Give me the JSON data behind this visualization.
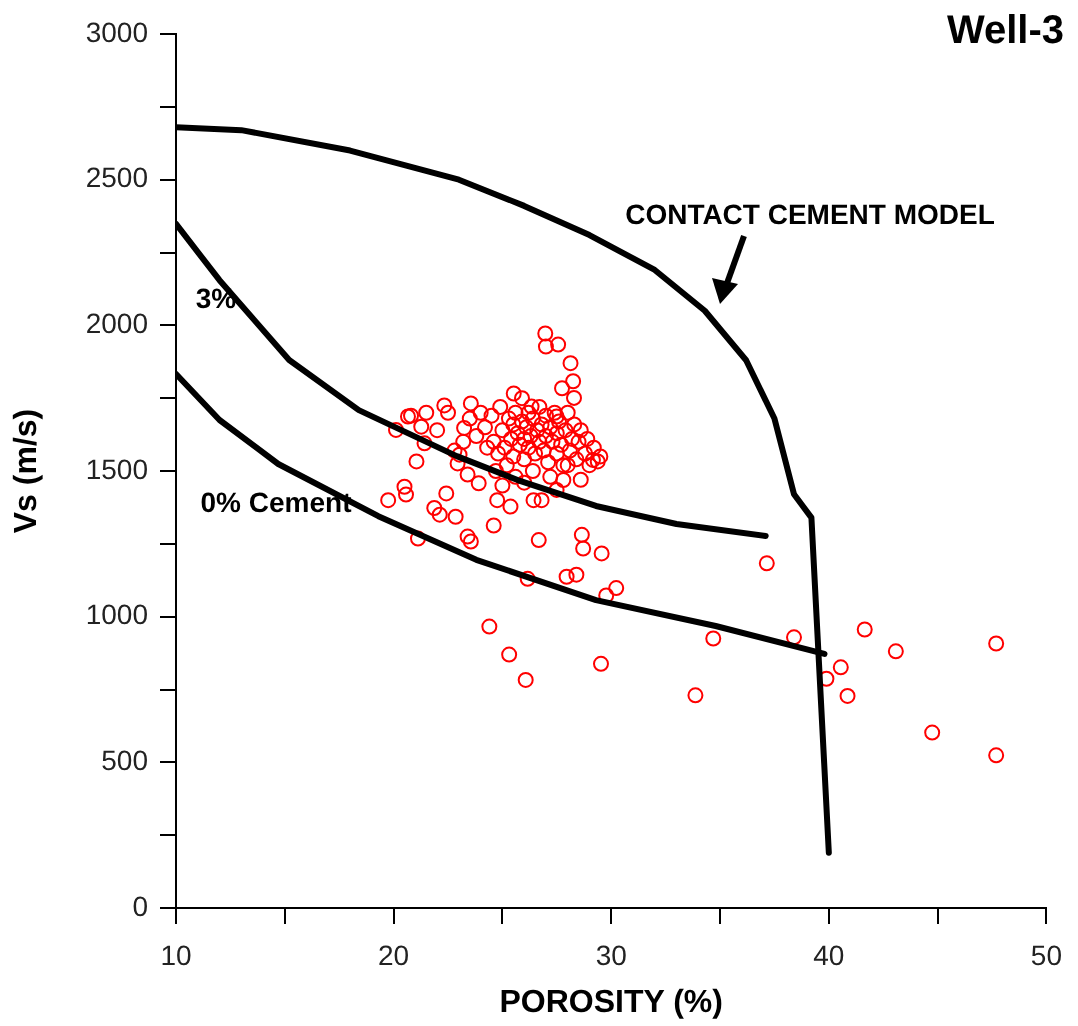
{
  "chart_data": {
    "type": "scatter",
    "title": "Well-3",
    "xlabel": "POROSITY (%)",
    "ylabel": "Vs (m/s)",
    "xlim": [
      10,
      50
    ],
    "ylim": [
      0,
      3000
    ],
    "xticks": [
      10,
      {
        "value": 15,
        "label": null
      },
      20,
      {
        "value": 25,
        "label": null
      },
      30,
      {
        "value": 35,
        "label": null
      },
      40,
      {
        "value": 45,
        "label": null
      },
      50
    ],
    "yticks": [
      0,
      {
        "value": 250,
        "label": null
      },
      500,
      {
        "value": 750,
        "label": null
      },
      1000,
      {
        "value": 1250,
        "label": null
      },
      1500,
      {
        "value": 1750,
        "label": null
      },
      2000,
      {
        "value": 2250,
        "label": null
      },
      2500,
      {
        "value": 2750,
        "label": null
      },
      3000
    ],
    "grid": false,
    "legend": false,
    "annotations": [
      "CONTACT CEMENT MODEL",
      "3%",
      "0% Cement"
    ],
    "series": [
      {
        "type": "line",
        "color": "#000000",
        "marker": "none",
        "x": [
          10,
          13,
          18,
          23,
          26,
          29,
          32,
          34.3,
          36.2,
          37.5,
          38.4,
          39.2,
          40
        ],
        "values": [
          2680,
          2670,
          2600,
          2500,
          2410,
          2310,
          2190,
          2050,
          1880,
          1680,
          1420,
          1340,
          190
        ]
      },
      {
        "type": "line",
        "color": "#000000",
        "marker": "none",
        "x": [
          10,
          12,
          15.2,
          18.4,
          22.9,
          25.7,
          29.3,
          33,
          37.1
        ],
        "values": [
          2348,
          2155,
          1881,
          1709,
          1551,
          1469,
          1380,
          1318,
          1277
        ]
      },
      {
        "type": "line",
        "color": "#000000",
        "marker": "none",
        "x": [
          10,
          12,
          14.7,
          19.3,
          23.8,
          29.3,
          34.8,
          39.8
        ],
        "values": [
          1833,
          1675,
          1524,
          1345,
          1195,
          1057,
          968,
          872
        ]
      },
      {
        "color": "#ff0000",
        "marker": "circle",
        "x": [
          26.97,
          27.0,
          27.56,
          28.13,
          28.25,
          27.74,
          28.29,
          20.11,
          20.66,
          21.27,
          21.42,
          21.05,
          19.75,
          20.5,
          20.57,
          21.12,
          21.87,
          22.12,
          22.42,
          22.85,
          23.4,
          23.55,
          24.6,
          26.67,
          28.65,
          28.71,
          29.56,
          28.4,
          27.95,
          26.16,
          30.23,
          29.77,
          24.4,
          25.31,
          26.07,
          29.53,
          22.33,
          23.55,
          23.24,
          23.03,
          22.94,
          23.4,
          23.91,
          24.76,
          25.37,
          26.43,
          27.49,
          27.8,
          25.52,
          26.34,
          27.49,
          29.16,
          29.38,
          37.15,
          34.69,
          33.87,
          38.4,
          41.65,
          43.08,
          47.69,
          40.55,
          39.89,
          40.86,
          44.75,
          47.69,
          24.2,
          24.5,
          24.6,
          24.8,
          24.9,
          25.0,
          25.1,
          25.2,
          25.3,
          25.4,
          25.5,
          25.5,
          25.6,
          25.7,
          25.8,
          25.9,
          25.9,
          26.0,
          26.0,
          26.1,
          26.2,
          26.2,
          26.3,
          26.4,
          26.4,
          26.5,
          26.6,
          26.7,
          26.7,
          26.8,
          26.9,
          27.0,
          27.0,
          27.1,
          27.2,
          27.3,
          27.4,
          27.5,
          27.5,
          27.6,
          27.7,
          27.8,
          27.9,
          28.0,
          28.1,
          28.2,
          28.3,
          28.4,
          28.5,
          28.6,
          28.8,
          28.9,
          29.0,
          29.2,
          29.5,
          24.3,
          24.0,
          23.8,
          23.5,
          23.2,
          22.8,
          22.5,
          22.0,
          21.5,
          20.8,
          26.0,
          25.6,
          27.2,
          28.6,
          24.7,
          25.0,
          26.8,
          28.0
        ],
        "values": [
          1972,
          1927,
          1934,
          1870,
          1808,
          1784,
          1751,
          1641,
          1687,
          1652,
          1595,
          1533,
          1400,
          1446,
          1419,
          1268,
          1373,
          1350,
          1423,
          1343,
          1275,
          1258,
          1313,
          1263,
          1281,
          1234,
          1217,
          1144,
          1137,
          1130,
          1098,
          1073,
          966,
          870,
          783,
          838,
          1725,
          1732,
          1648,
          1556,
          1526,
          1488,
          1458,
          1400,
          1378,
          1400,
          1435,
          1469,
          1766,
          1721,
          1687,
          1538,
          1533,
          1183,
          925,
          730,
          929,
          956,
          881,
          908,
          826,
          787,
          728,
          602,
          524,
          1650,
          1690,
          1600,
          1560,
          1720,
          1640,
          1580,
          1520,
          1680,
          1610,
          1660,
          1550,
          1700,
          1630,
          1590,
          1750,
          1670,
          1610,
          1540,
          1650,
          1700,
          1580,
          1620,
          1680,
          1500,
          1560,
          1640,
          1600,
          1720,
          1660,
          1570,
          1620,
          1690,
          1530,
          1650,
          1600,
          1700,
          1560,
          1630,
          1670,
          1590,
          1520,
          1640,
          1700,
          1570,
          1610,
          1660,
          1540,
          1600,
          1640,
          1560,
          1610,
          1520,
          1580,
          1550,
          1580,
          1700,
          1620,
          1680,
          1600,
          1570,
          1700,
          1640,
          1700,
          1690,
          1460,
          1480,
          1480,
          1470,
          1500,
          1450,
          1400,
          1520
        ]
      }
    ]
  }
}
